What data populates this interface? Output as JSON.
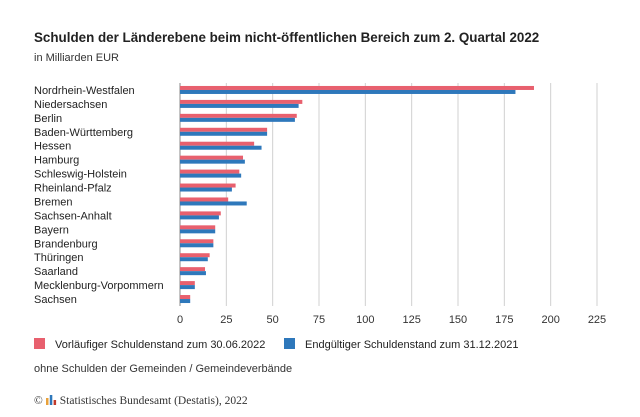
{
  "title": "Schulden der Länderebene beim nicht-öffentlichen Bereich zum 2. Quartal 2022",
  "subtitle": "in Milliarden EUR",
  "note": "ohne Schulden der Gemeinden / Gemeindeverbände",
  "source": {
    "copyright": "©",
    "text": "Statistisches Bundesamt (Destatis), 2022"
  },
  "colors": {
    "series1": "#e8606e",
    "series2": "#2e78bb",
    "grid": "#d0d0d0",
    "axis": "#333333"
  },
  "chart_data": {
    "type": "bar",
    "orientation": "horizontal",
    "categories": [
      "Nordrhein-Westfalen",
      "Niedersachsen",
      "Berlin",
      "Baden-Württemberg",
      "Hessen",
      "Hamburg",
      "Schleswig-Holstein",
      "Rheinland-Pfalz",
      "Bremen",
      "Sachsen-Anhalt",
      "Bayern",
      "Brandenburg",
      "Thüringen",
      "Saarland",
      "Mecklenburg-Vorpommern",
      "Sachsen"
    ],
    "series": [
      {
        "name": "Vorläufiger Schuldenstand zum 30.06.2022",
        "values": [
          191,
          66,
          63,
          47,
          40,
          34,
          32,
          30,
          26,
          22,
          19,
          18,
          16,
          13.5,
          8,
          5.5
        ]
      },
      {
        "name": "Endgültiger Schuldenstand zum 31.12.2021",
        "values": [
          181,
          64,
          62,
          47,
          44,
          35,
          33,
          28,
          36,
          21,
          19,
          18,
          15,
          14,
          8,
          5.5
        ]
      }
    ],
    "xlim": [
      0,
      225
    ],
    "xticks": [
      0,
      25,
      50,
      75,
      100,
      125,
      150,
      175,
      200,
      225
    ],
    "grid": true,
    "legend": "bottom"
  }
}
